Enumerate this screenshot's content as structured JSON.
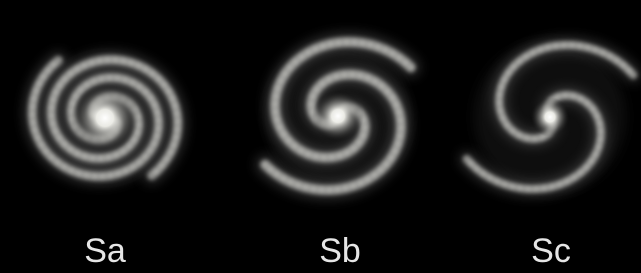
{
  "galaxies": [
    {
      "label": "Sa"
    },
    {
      "label": "Sb"
    },
    {
      "label": "Sc"
    }
  ]
}
